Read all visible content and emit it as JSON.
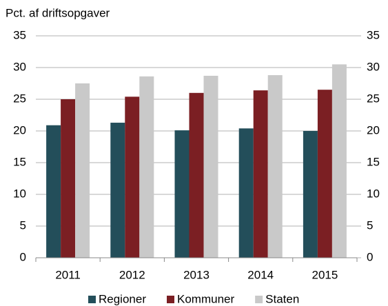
{
  "chart_data": {
    "type": "bar",
    "y_label": "Pct. af driftsopgaver",
    "categories": [
      "2011",
      "2012",
      "2013",
      "2014",
      "2015"
    ],
    "series": [
      {
        "name": "Regioner",
        "color": "#234e5a",
        "values": [
          20.9,
          21.3,
          20.1,
          20.4,
          20.0
        ]
      },
      {
        "name": "Kommuner",
        "color": "#7b1f23",
        "values": [
          25.0,
          25.4,
          26.0,
          26.4,
          26.5
        ]
      },
      {
        "name": "Staten",
        "color": "#c9c9c9",
        "values": [
          27.5,
          28.6,
          28.7,
          28.8,
          30.5
        ]
      }
    ],
    "ylim": [
      0,
      35
    ],
    "yticks": [
      0,
      5,
      10,
      15,
      20,
      25,
      30,
      35
    ],
    "y2lim": [
      0,
      35
    ],
    "y2ticks": [
      0,
      5,
      10,
      15,
      20,
      25,
      30,
      35
    ],
    "grid": true,
    "legend": "bottom"
  }
}
